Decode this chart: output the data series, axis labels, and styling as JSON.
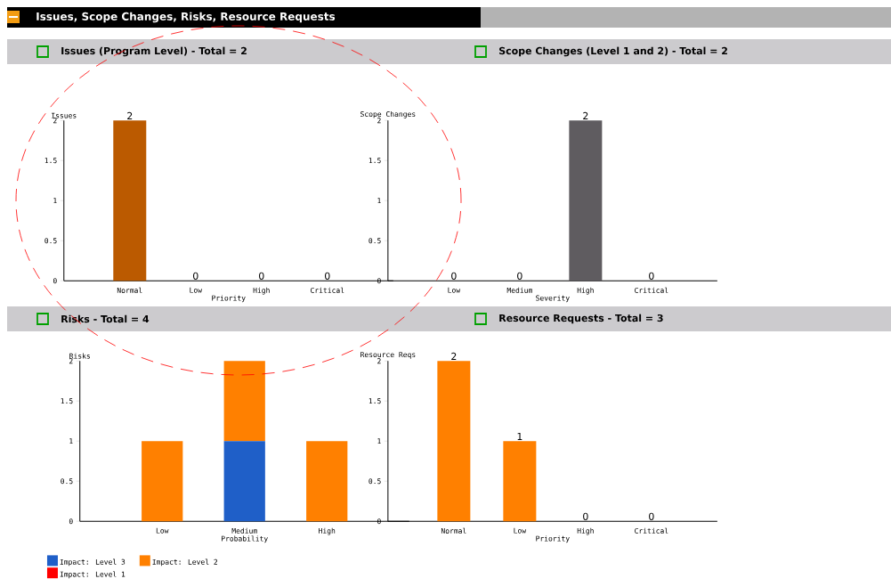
{
  "chart_data": [
    {
      "type": "bar",
      "title": "Issues (Program Level) - Total = 2",
      "annotations": [
        "Issues, Scope Changes, Risks, Resource Requests"
      ],
      "xlabel": "Priority",
      "ylabel": "Issues",
      "categories": [
        "Normal",
        "Low",
        "High",
        "Critical"
      ],
      "series": [
        {
          "color": "#bb5a00",
          "values": [
            2,
            0,
            0,
            0
          ]
        }
      ],
      "ylim": [
        0,
        2
      ],
      "yticks": [
        0,
        0.5,
        1,
        1.5,
        2
      ],
      "data_labels": true
    },
    {
      "type": "bar",
      "title": "Scope Changes (Level 1 and 2) - Total = 2",
      "xlabel": "Severity",
      "ylabel": "Scope Changes",
      "categories": [
        "Low",
        "Medium",
        "High",
        "Critical"
      ],
      "series": [
        {
          "color": "#5f5c60",
          "values": [
            0,
            0,
            2,
            0
          ]
        }
      ],
      "ylim": [
        0,
        2
      ],
      "yticks": [
        0,
        0.5,
        1,
        1.5,
        2
      ],
      "data_labels": true
    },
    {
      "type": "bar",
      "title": "Risks - Total = 4",
      "xlabel": "Probability",
      "ylabel": "Risks",
      "categories": [
        "Low",
        "Medium",
        "High"
      ],
      "stacked": true,
      "legend": "bottom",
      "series": [
        {
          "name": "Impact: Level 3",
          "color": "#1f5fc8",
          "values": [
            0,
            1,
            0
          ]
        },
        {
          "name": "Impact: Level 2",
          "color": "#ff8000",
          "values": [
            1,
            1,
            1
          ]
        },
        {
          "name": "Impact: Level 1",
          "color": "#ff0000",
          "values": [
            0,
            0,
            0
          ]
        }
      ],
      "ylim": [
        0,
        2
      ],
      "yticks": [
        0,
        0.5,
        1,
        1.5,
        2
      ]
    },
    {
      "type": "bar",
      "title": "Resource Requests - Total = 3",
      "xlabel": "Priority",
      "ylabel": "Resource Reqs",
      "categories": [
        "Normal",
        "Low",
        "High",
        "Critical"
      ],
      "series": [
        {
          "color": "#ff8000",
          "values": [
            2,
            1,
            0,
            0
          ]
        }
      ],
      "ylim": [
        0,
        2
      ],
      "yticks": [
        0,
        0.5,
        1,
        1.5,
        2
      ],
      "data_labels": true
    }
  ]
}
